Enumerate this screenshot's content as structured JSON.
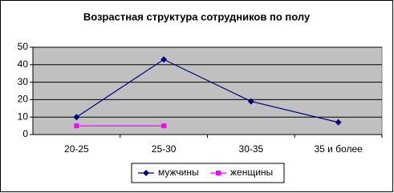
{
  "chart_data": {
    "type": "line",
    "title": "Возрастная структура сотрудников по полу",
    "categories": [
      "20-25",
      "25-30",
      "30-35",
      "35 и более"
    ],
    "series": [
      {
        "name": "мужчины",
        "color": "#000080",
        "marker": "diamond",
        "values": [
          10,
          43,
          19,
          7
        ]
      },
      {
        "name": "женщины",
        "color": "#ff00ff",
        "marker": "square",
        "values": [
          5,
          5,
          null,
          null
        ]
      }
    ],
    "ylim": [
      0,
      50
    ],
    "yticks": [
      0,
      10,
      20,
      30,
      40,
      50
    ],
    "grid": true,
    "legend": "bottom"
  }
}
